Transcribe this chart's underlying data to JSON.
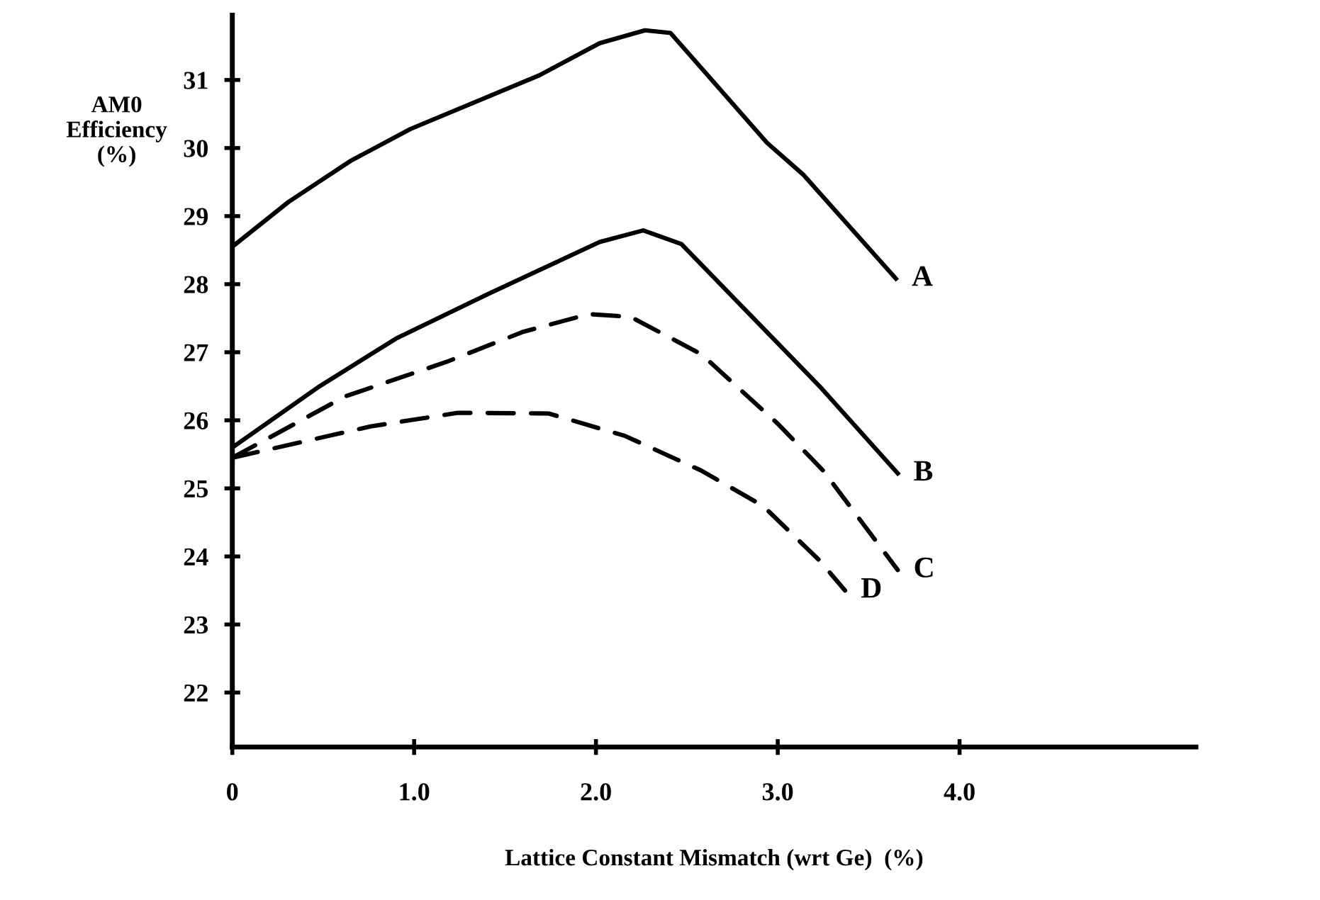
{
  "chart_data": {
    "type": "line",
    "xlabel": "Lattice Constant Mismatch (wrt Ge)  (%)",
    "ylabel": "AM0\nEfficiency\n(%)",
    "xlim": [
      0,
      5.3
    ],
    "xticks": [
      0,
      {
        "value": 1,
        "label": "1.0"
      },
      {
        "value": 2,
        "label": "2.0"
      },
      {
        "value": 3,
        "label": "3.0"
      },
      {
        "value": 4,
        "label": "4.0"
      }
    ],
    "ylim": [
      21.2,
      31.95
    ],
    "yticks": [
      22,
      23,
      24,
      25,
      26,
      27,
      28,
      29,
      30,
      31
    ],
    "grid": false,
    "legend": false,
    "marker": "none",
    "series": [
      {
        "name": "A",
        "color": "#000000",
        "line_style": "solid",
        "x": [
          0,
          0.31,
          0.65,
          0.98,
          1.69,
          2.02,
          2.27,
          2.41,
          2.94,
          3.14,
          3.65
        ],
        "values": [
          28.55,
          29.21,
          29.81,
          30.28,
          31.07,
          31.54,
          31.73,
          31.69,
          30.08,
          29.61,
          28.08
        ]
      },
      {
        "name": "B",
        "color": "#000000",
        "line_style": "solid",
        "x": [
          0,
          0.48,
          0.9,
          1.41,
          2.02,
          2.26,
          2.47,
          3.23,
          3.66
        ],
        "values": [
          25.6,
          26.5,
          27.2,
          27.86,
          28.62,
          28.79,
          28.59,
          26.5,
          25.22
        ]
      },
      {
        "name": "C",
        "color": "#000000",
        "line_style": "dashed",
        "x": [
          0,
          0.62,
          1.18,
          1.6,
          1.96,
          2.19,
          2.58,
          3.0,
          3.25,
          3.66
        ],
        "values": [
          25.45,
          26.35,
          26.86,
          27.3,
          27.56,
          27.52,
          26.97,
          25.95,
          25.26,
          23.8
        ]
      },
      {
        "name": "D",
        "color": "#000000",
        "line_style": "dashed",
        "x": [
          0,
          0.76,
          1.24,
          1.74,
          2.16,
          2.58,
          2.92,
          3.23,
          3.37
        ],
        "values": [
          25.45,
          25.91,
          26.11,
          26.1,
          25.77,
          25.26,
          24.74,
          23.94,
          23.5
        ]
      }
    ]
  }
}
